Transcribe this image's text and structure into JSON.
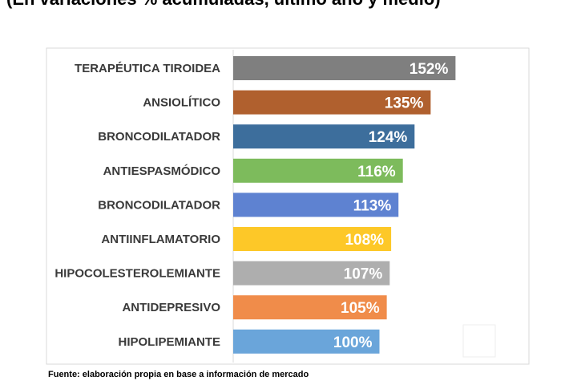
{
  "header": {
    "subtitle": "(En variaciones % acumuladas, último año y medio)"
  },
  "footer": {
    "source": "Fuente: elaboración propia en base a información de mercado"
  },
  "chart_data": {
    "type": "bar",
    "orientation": "horizontal",
    "categories": [
      "TERAPÉUTICA TIROIDEA",
      "ANSIOLÍTICO",
      "BRONCODILATADOR",
      "ANTIESPASMÓDICO",
      "BRONCODILATADOR",
      "ANTIINFLAMATORIO",
      "HIPOCOLESTEROLEMIANTE",
      "ANTIDEPRESIVO",
      "HIPOLIPEMIANTE"
    ],
    "values": [
      152,
      135,
      124,
      116,
      113,
      108,
      107,
      105,
      100
    ],
    "value_labels": [
      "152%",
      "135%",
      "124%",
      "116%",
      "113%",
      "108%",
      "107%",
      "105%",
      "100%"
    ],
    "colors": [
      "#7f7f7f",
      "#b0602e",
      "#3d6e9c",
      "#7dbb5c",
      "#5e82d1",
      "#fdc828",
      "#aeaeae",
      "#f08c4a",
      "#6aa5da"
    ],
    "xlim": [
      0,
      200
    ],
    "grid": false,
    "legend": "none"
  }
}
